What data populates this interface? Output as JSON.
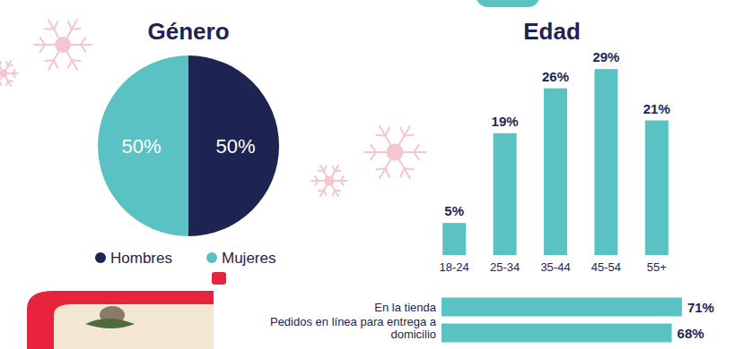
{
  "chart_data": [
    {
      "type": "pie",
      "title": "Género",
      "categories": [
        "Hombres",
        "Mujeres"
      ],
      "values": [
        50,
        50
      ],
      "colors": [
        "#1e2452",
        "#5bc2c4"
      ],
      "data_labels": true,
      "value_labels": [
        "50%",
        "50%"
      ],
      "legend": "bottom"
    },
    {
      "type": "bar",
      "title": "Edad",
      "categories": [
        "18-24",
        "25-34",
        "35-44",
        "45-54",
        "55+"
      ],
      "values": [
        5,
        19,
        26,
        29,
        21
      ],
      "value_labels": [
        "5%",
        "19%",
        "26%",
        "29%",
        "21%"
      ],
      "color": "#5bc2c4",
      "ylim": [
        0,
        30
      ],
      "tick_labels": "x",
      "data_labels": true
    },
    {
      "type": "bar",
      "orientation": "horizontal",
      "categories": [
        "En la tienda",
        "Pedidos en línea para entrega a domicilio"
      ],
      "values": [
        71,
        68
      ],
      "value_labels": [
        "71%",
        "68%"
      ],
      "color": "#5bc2c4",
      "xlim": [
        0,
        75
      ],
      "tick_labels": "y",
      "data_labels": true
    }
  ]
}
